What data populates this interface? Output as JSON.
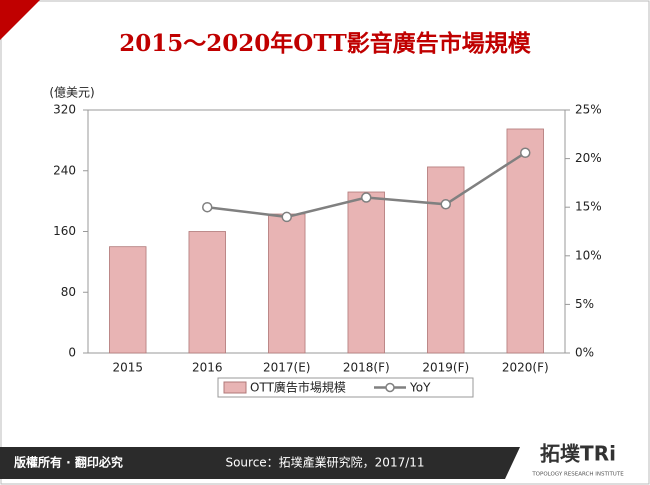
{
  "chart_data": {
    "type": "bar",
    "title": "2015～2020年OTT影音廣告市場規模",
    "y_label": "(億美元)",
    "categories": [
      "2015",
      "2016",
      "2017(E)",
      "2018(F)",
      "2019(F)",
      "2020(F)"
    ],
    "series": [
      {
        "name": "OTT廣告市場規模",
        "type": "bar",
        "color": "#e8b4b4",
        "values": [
          140,
          160,
          183,
          212,
          245,
          295
        ]
      },
      {
        "name": "YoY",
        "type": "line",
        "axis": "y2",
        "color": "#808080",
        "values": [
          null,
          15,
          14,
          16,
          15.3,
          20.6
        ]
      }
    ],
    "ylim": [
      0,
      320
    ],
    "yticks": [
      0,
      80,
      160,
      240,
      320
    ],
    "y2lim": [
      0,
      25
    ],
    "y2ticks": [
      {
        "value": 0,
        "label": "0%"
      },
      {
        "value": 5,
        "label": "5%"
      },
      {
        "value": 10,
        "label": "10%"
      },
      {
        "value": 15,
        "label": "15%"
      },
      {
        "value": 20,
        "label": "20%"
      },
      {
        "value": 25,
        "label": "25%"
      }
    ],
    "grid": false
  },
  "footer": {
    "copyright": "版權所有 · 翻印必究",
    "source": "Source：拓墣產業研究院，2017/11",
    "logo": "拓墣TRi",
    "logo_subtitle": "TOPOLOGY RESEARCH INSTITUTE"
  }
}
